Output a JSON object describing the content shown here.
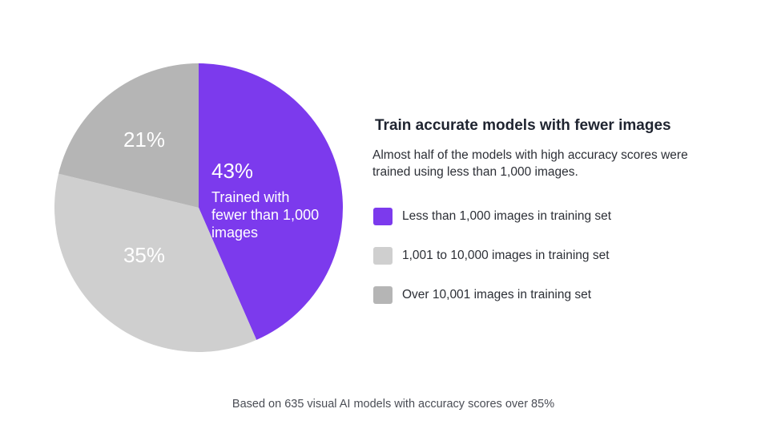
{
  "chart_data": {
    "type": "pie",
    "title": "Train accurate models with fewer images",
    "subtitle": "Almost half of the models with high accuracy scores were trained using less than 1,000 images.",
    "note": "Based on 635 visual AI models with accuracy scores over 85%",
    "slices": [
      {
        "label": "Less than 1,000 images in training set",
        "value": 43,
        "display": "43%",
        "annotation": [
          "Trained with",
          "fewer than 1,000",
          "images"
        ],
        "color": "#7c3aed"
      },
      {
        "label": "1,001 to 10,000 images in training set",
        "value": 35,
        "display": "35%",
        "annotation": [],
        "color": "#cfcfcf"
      },
      {
        "label": "Over 10,001 images in training set",
        "value": 21,
        "display": "21%",
        "annotation": [],
        "color": "#b5b5b5"
      }
    ],
    "legend_position": "right"
  }
}
